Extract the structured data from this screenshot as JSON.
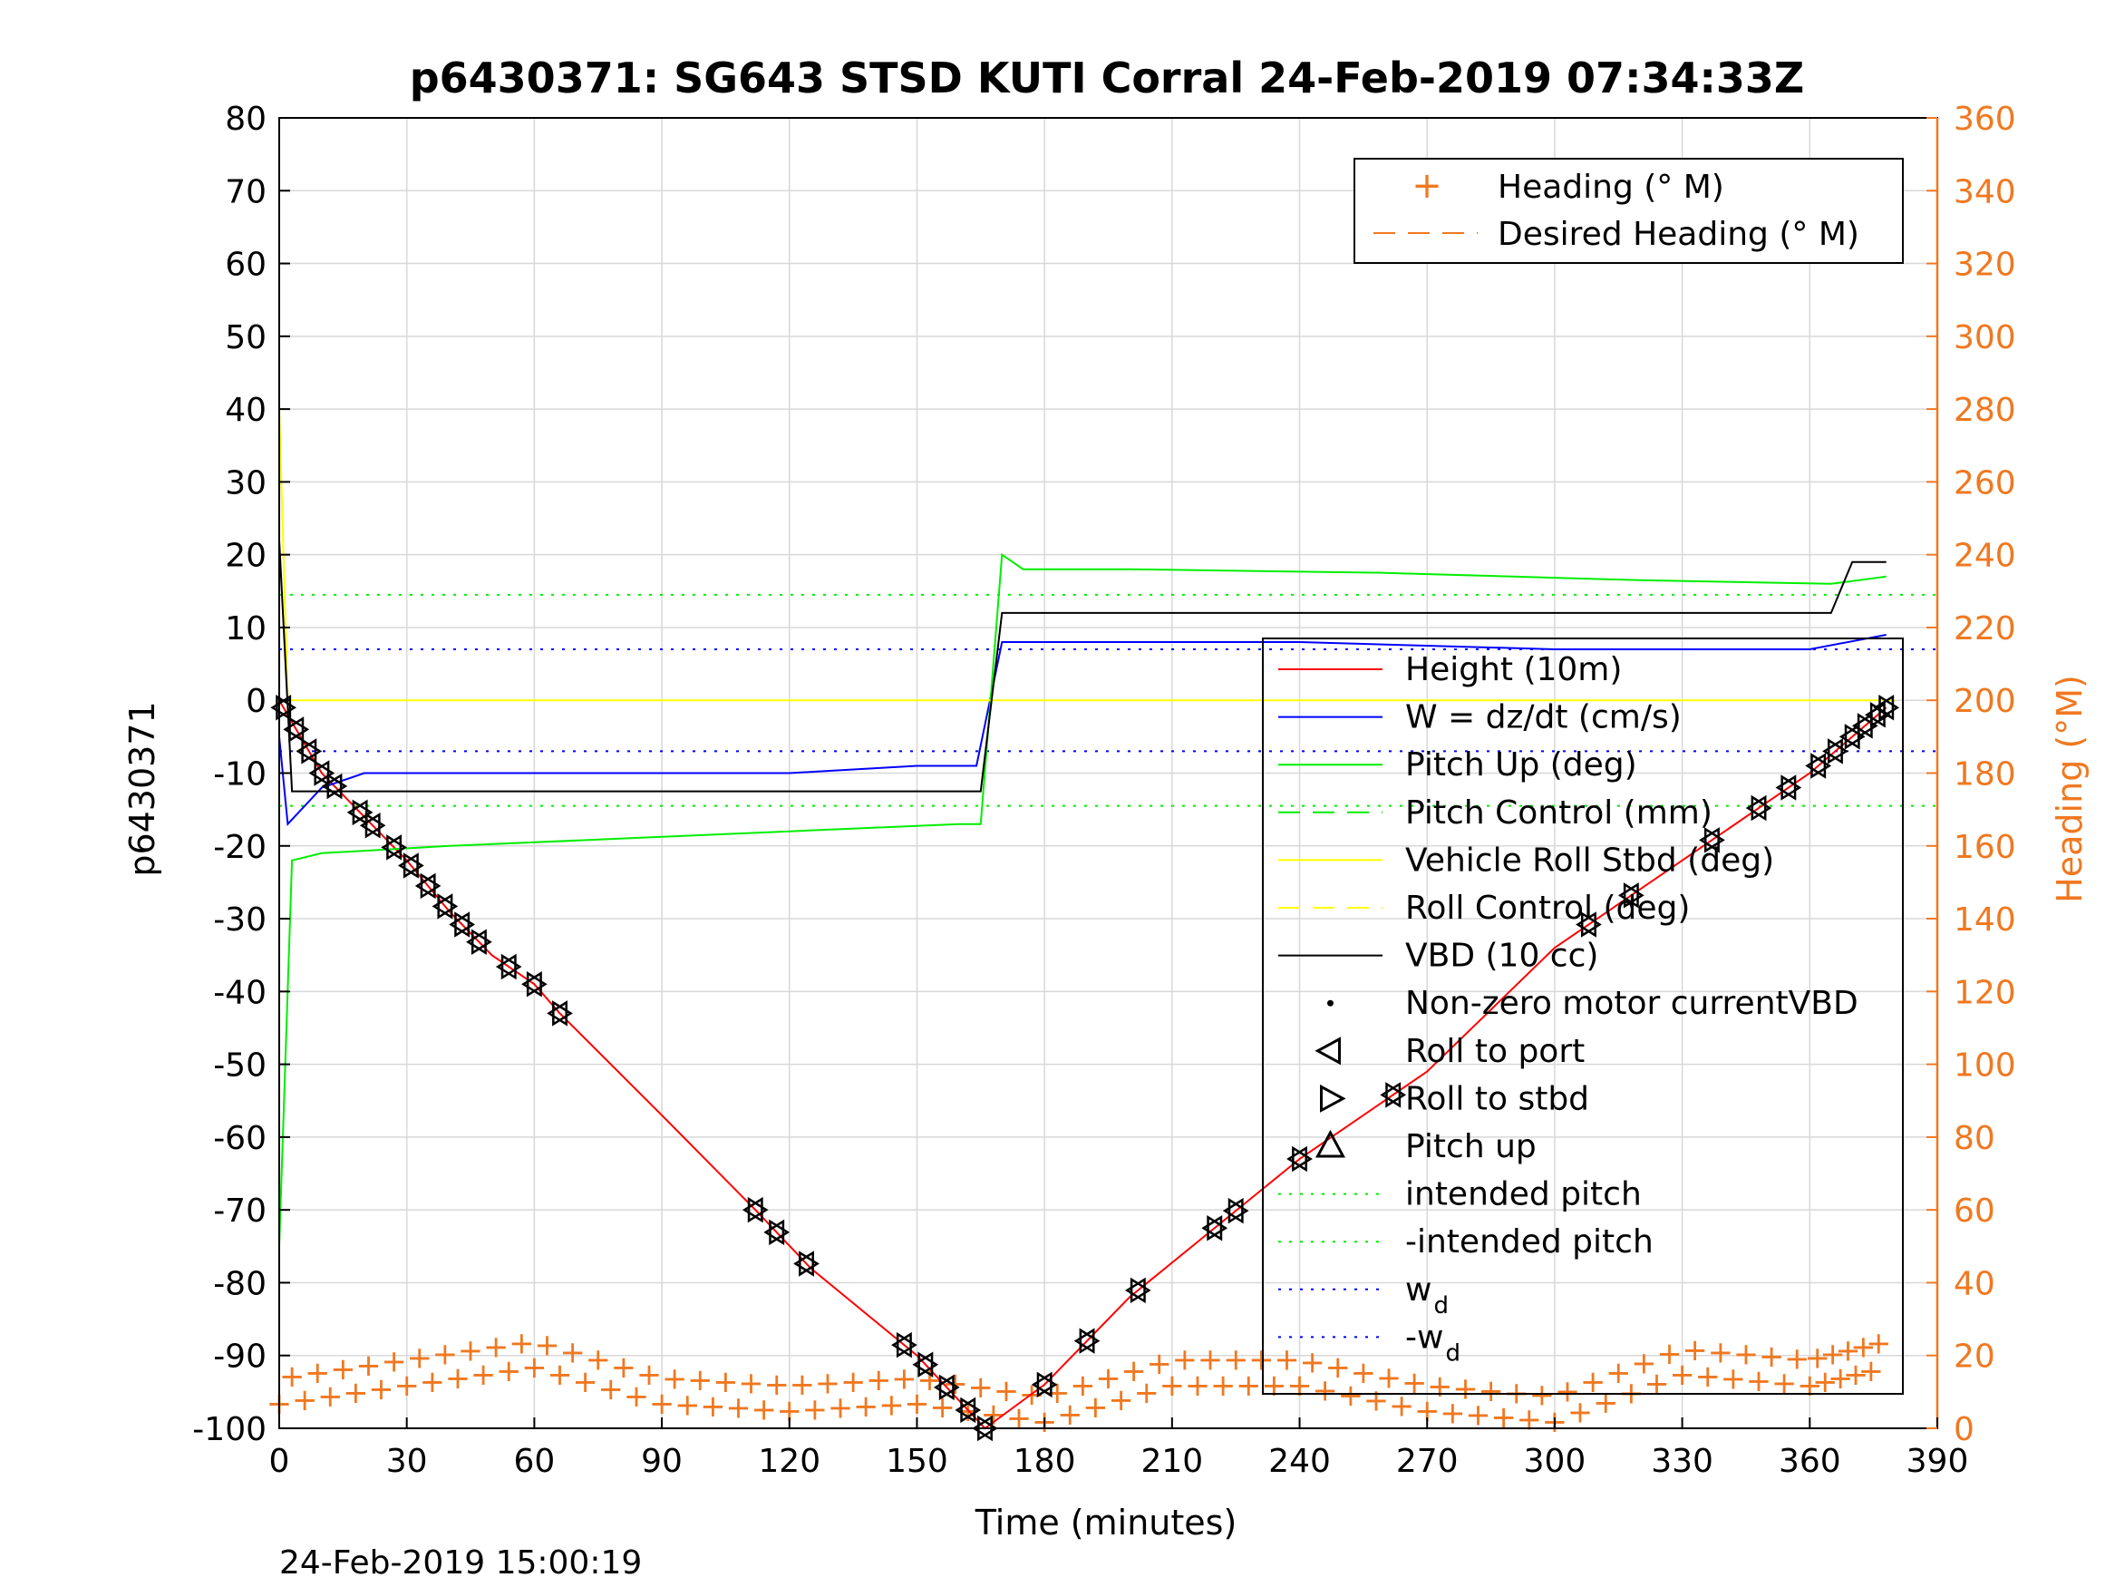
{
  "chart_data": {
    "type": "line",
    "title": "p6430371: SG643 STSD KUTI Corral 24-Feb-2019 07:34:33Z",
    "xlabel": "Time (minutes)",
    "ylabel": "p6430371",
    "ylabel_right": "Heading (°M)",
    "timestamp": "24-Feb-2019 15:00:19",
    "xlim": [
      0,
      390
    ],
    "ylim": [
      -100,
      80
    ],
    "ylim_right": [
      0,
      360
    ],
    "grid": true,
    "x_ticks": [
      "0",
      "30",
      "60",
      "90",
      "120",
      "150",
      "180",
      "210",
      "240",
      "270",
      "300",
      "330",
      "360",
      "390"
    ],
    "y_ticks": [
      "80",
      "70",
      "60",
      "50",
      "40",
      "30",
      "20",
      "10",
      "0",
      "-10",
      "-20",
      "-30",
      "-40",
      "-50",
      "-60",
      "-70",
      "-80",
      "-90",
      "-100"
    ],
    "y_ticks_right": [
      "360",
      "340",
      "320",
      "300",
      "280",
      "260",
      "240",
      "220",
      "200",
      "180",
      "160",
      "140",
      "120",
      "100",
      "80",
      "60",
      "40",
      "20",
      "0"
    ],
    "colors": {
      "height": "#ff0000",
      "w": "#0000ff",
      "pitch": "#00ee00",
      "roll": "#ffff00",
      "vbd": "#000000",
      "heading": "#f07820"
    },
    "legend_top": {
      "position": "top-right",
      "entries": [
        "Heading (° M)",
        "Desired Heading (° M)"
      ]
    },
    "legend_main": {
      "position": "right",
      "entries": [
        "Height (10m)",
        "W = dz/dt (cm/s)",
        "Pitch Up (deg)",
        "Pitch Control (mm)",
        "Vehicle Roll Stbd (deg)",
        "Roll Control (deg)",
        "VBD (10 cc)",
        "Non-zero motor currentVBD",
        "Roll to port",
        "Roll to stbd",
        "Pitch up",
        "intended pitch",
        "-intended pitch",
        "w",
        "-w"
      ],
      "subscript": "d"
    },
    "series": [
      {
        "name": "Height (10m)",
        "x": [
          0,
          10,
          20,
          30,
          40,
          50,
          60,
          66,
          90,
          112,
          125,
          150,
          166,
          180,
          200,
          240,
          270,
          300,
          330,
          360,
          378
        ],
        "y": [
          0,
          -10,
          -16,
          -22,
          -29,
          -35,
          -39,
          -43,
          -57,
          -70,
          -78,
          -90,
          -100,
          -94,
          -82,
          -63,
          -51,
          -34,
          -22,
          -10,
          -1
        ]
      },
      {
        "name": "W = dz/dt (cm/s)",
        "x": [
          0,
          2,
          10,
          20,
          40,
          60,
          90,
          120,
          150,
          164,
          170,
          200,
          240,
          300,
          360,
          378
        ],
        "y": [
          -5,
          -17,
          -12,
          -10,
          -10,
          -10,
          -10,
          -10,
          -9,
          -9,
          8,
          8,
          8,
          7,
          7,
          9
        ]
      },
      {
        "name": "Pitch Up (deg)",
        "x": [
          0,
          3,
          10,
          40,
          80,
          120,
          160,
          165,
          170,
          175,
          200,
          260,
          320,
          365,
          378
        ],
        "y": [
          -75,
          -22,
          -21,
          -20,
          -19,
          -18,
          -17,
          -17,
          20,
          18,
          18,
          17.5,
          16.5,
          16,
          17
        ]
      },
      {
        "name": "Vehicle Roll Stbd (deg)",
        "x": [
          0,
          2,
          5,
          380
        ],
        "y": [
          40,
          0,
          0,
          0
        ]
      },
      {
        "name": "VBD (10 cc)",
        "x": [
          0,
          3,
          164,
          165,
          170,
          365,
          370,
          378
        ],
        "y": [
          22,
          -12.5,
          -12.5,
          -12.5,
          12,
          12,
          19,
          19
        ]
      },
      {
        "name": "Heading (° M)",
        "x": [
          0,
          30,
          60,
          90,
          120,
          150,
          180,
          210,
          240,
          270,
          300,
          330,
          360,
          378
        ],
        "y": [
          10,
          15,
          20,
          10,
          8,
          10,
          5,
          15,
          15,
          8,
          5,
          18,
          15,
          20
        ]
      },
      {
        "name": "intended pitch",
        "y_const": 14.5
      },
      {
        "name": "-intended pitch",
        "y_const": -14.5
      },
      {
        "name": "w",
        "y_const": 7
      },
      {
        "name": "-w",
        "y_const": -7
      }
    ],
    "markers": {
      "roll_to_port_x": [
        1,
        4,
        7,
        10,
        13,
        19,
        22,
        27,
        31,
        35,
        39,
        43,
        47,
        54,
        60,
        66,
        112,
        117,
        124,
        147,
        152,
        157,
        162,
        166,
        180,
        190,
        202,
        220,
        225,
        240,
        262,
        308,
        318,
        337,
        348,
        355,
        362,
        366,
        370,
        373,
        376,
        378
      ]
    }
  }
}
